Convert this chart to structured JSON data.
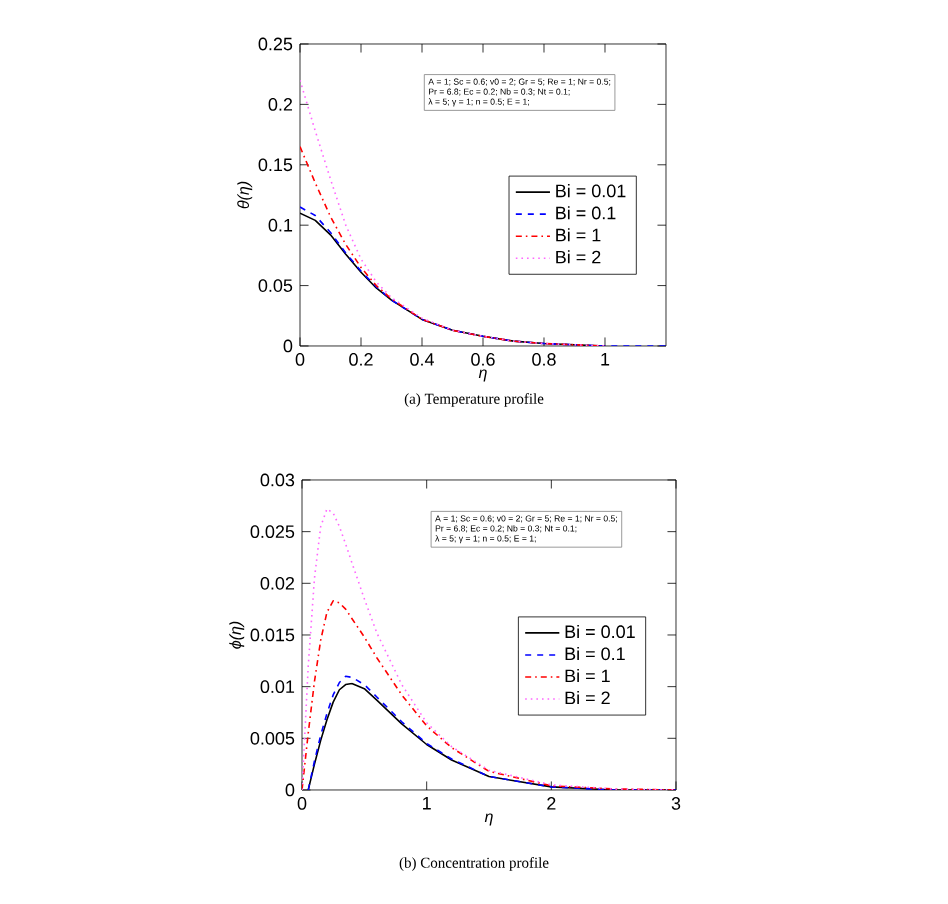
{
  "chart_data": [
    {
      "type": "line",
      "xlabel": "η",
      "ylabel": "θ(η)",
      "xlim": [
        0,
        1.2
      ],
      "ylim": [
        0,
        0.25
      ],
      "xticks": [
        0,
        0.2,
        0.4,
        0.6,
        0.8,
        1
      ],
      "yticks": [
        0,
        0.05,
        0.1,
        0.15,
        0.2,
        0.25
      ],
      "legend": "right",
      "annotations": [
        "A = 1; Sc = 0.6; v0 = 2; Gr = 5; Re = 1; Nr = 0.5;",
        "Pr = 6.8; Ec = 0.2; Nb = 0.3; Nt = 0.1;",
        "λ = 5; γ = 1; n = 0.5; E = 1;",
        "(a) Temperature profile"
      ],
      "x": [
        0,
        0.05,
        0.1,
        0.15,
        0.2,
        0.25,
        0.3,
        0.4,
        0.5,
        0.6,
        0.7,
        0.8,
        0.9,
        1,
        1.1,
        1.2
      ],
      "series": [
        {
          "name": "Bi = 0.01",
          "color": "#000000",
          "line_style": "solid",
          "values": [
            0.11,
            0.104,
            0.092,
            0.076,
            0.061,
            0.048,
            0.038,
            0.022,
            0.013,
            0.008,
            0.004,
            0.002,
            0.001,
            0,
            null,
            null
          ]
        },
        {
          "name": "Bi =  0.1",
          "color": "#0000ff",
          "line_style": "dashed",
          "values": [
            0.115,
            0.108,
            0.094,
            0.077,
            0.062,
            0.049,
            0.038,
            0.022,
            0.013,
            0.008,
            0.004,
            0.002,
            0.001,
            0,
            0,
            0
          ]
        },
        {
          "name": "Bi =   1",
          "color": "#ff0000",
          "line_style": "dashdot",
          "values": [
            0.165,
            0.135,
            0.107,
            0.084,
            0.065,
            0.05,
            0.039,
            0.022,
            0.013,
            0.008,
            0.004,
            0.002,
            0.001,
            0,
            null,
            null
          ]
        },
        {
          "name": "Bi =   2",
          "color": "#ff66ff",
          "line_style": "dotted",
          "values": [
            0.22,
            0.178,
            0.138,
            0.1,
            0.072,
            0.053,
            0.04,
            0.023,
            0.013,
            0.008,
            0.004,
            0.002,
            0.001,
            0,
            null,
            null
          ]
        }
      ]
    },
    {
      "type": "line",
      "xlabel": "η",
      "ylabel": "ϕ(η)",
      "xlim": [
        0,
        3
      ],
      "ylim": [
        0,
        0.03
      ],
      "xticks": [
        0,
        1,
        2,
        3
      ],
      "yticks": [
        0,
        0.005,
        0.01,
        0.015,
        0.02,
        0.025,
        0.03
      ],
      "legend": "right",
      "annotations": [
        "A = 1; Sc = 0.6; v0 = 2; Gr = 5; Re = 1; Nr = 0.5;",
        "Pr = 6.8; Ec = 0.2; Nb = 0.3; Nt = 0.1;",
        "λ = 5; γ = 1; n = 0.5; E = 1;",
        "(b) Concentration profile"
      ],
      "x": [
        0,
        0.05,
        0.1,
        0.15,
        0.2,
        0.25,
        0.3,
        0.35,
        0.4,
        0.5,
        0.6,
        0.8,
        1,
        1.2,
        1.5,
        2,
        2.5,
        3
      ],
      "series": [
        {
          "name": "Bi = 0.01",
          "color": "#000000",
          "line_style": "solid",
          "values": [
            null,
            0,
            0.0025,
            0.0048,
            0.0068,
            0.0085,
            0.0097,
            0.0102,
            0.0103,
            0.0098,
            0.0087,
            0.0064,
            0.0044,
            0.0029,
            0.0013,
            0.0003,
            0,
            0
          ]
        },
        {
          "name": "Bi =  0.1",
          "color": "#0000ff",
          "line_style": "dashed",
          "values": [
            null,
            0,
            0.0028,
            0.0053,
            0.0074,
            0.0092,
            0.0104,
            0.011,
            0.0109,
            0.0102,
            0.009,
            0.0066,
            0.0045,
            0.003,
            0.0013,
            0.0003,
            0,
            0
          ]
        },
        {
          "name": "Bi =   1",
          "color": "#ff0000",
          "line_style": "dashdot",
          "values": [
            0,
            0.0055,
            0.0105,
            0.0145,
            0.0172,
            0.0183,
            0.0181,
            0.0175,
            0.0166,
            0.0148,
            0.0128,
            0.0092,
            0.0062,
            0.0041,
            0.0018,
            0.0004,
            0.0001,
            0
          ]
        },
        {
          "name": "Bi =   2",
          "color": "#ff66ff",
          "line_style": "dotted",
          "values": [
            0,
            0.012,
            0.0205,
            0.0255,
            0.0272,
            0.0268,
            0.0255,
            0.0238,
            0.022,
            0.0185,
            0.0152,
            0.0102,
            0.0065,
            0.0042,
            0.0019,
            0.0005,
            0.0001,
            0
          ]
        }
      ]
    }
  ]
}
